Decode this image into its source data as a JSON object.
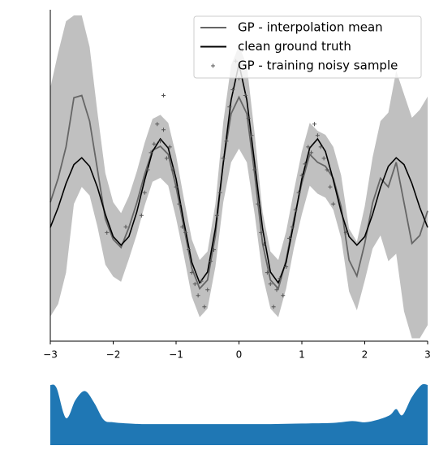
{
  "chart_data": [
    {
      "type": "line",
      "x": [
        -3,
        -2.875,
        -2.75,
        -2.625,
        -2.5,
        -2.375,
        -2.25,
        -2.125,
        -2,
        -1.875,
        -1.75,
        -1.625,
        -1.5,
        -1.375,
        -1.25,
        -1.125,
        -1,
        -0.875,
        -0.75,
        -0.625,
        -0.5,
        -0.375,
        -0.25,
        -0.125,
        0,
        0.125,
        0.25,
        0.375,
        0.5,
        0.625,
        0.75,
        0.875,
        1,
        1.125,
        1.25,
        1.375,
        1.5,
        1.625,
        1.75,
        1.875,
        2,
        2.125,
        2.25,
        2.375,
        2.5,
        2.625,
        2.75,
        2.875,
        3
      ],
      "xlim": [
        -3,
        3
      ],
      "xticks": [
        {
          "value": -3,
          "label": "−3"
        },
        {
          "value": -2,
          "label": "−2"
        },
        {
          "value": -1,
          "label": "−1"
        },
        0,
        1,
        2,
        3
      ],
      "ylim": [
        -2.5,
        3.3
      ],
      "legend": "upper right",
      "band": {
        "color": "#c0c0c0",
        "lower": [
          -2.07,
          -1.85,
          -1.3,
          -0.1,
          0.2,
          0.05,
          -0.5,
          -1.16,
          -1.37,
          -1.46,
          -1.06,
          -0.63,
          -0.13,
          0.29,
          0.36,
          0.22,
          -0.35,
          -1.01,
          -1.72,
          -2.08,
          -1.93,
          -1.2,
          -0.07,
          0.63,
          0.87,
          0.63,
          -0.28,
          -1.34,
          -1.93,
          -2.08,
          -1.58,
          -0.86,
          -0.28,
          0.22,
          0.08,
          0.01,
          -0.2,
          -0.7,
          -1.63,
          -1.96,
          -1.44,
          -0.88,
          -0.65,
          -1.1,
          -0.97,
          -1.98,
          -2.45,
          -2.45,
          -2.22
        ],
        "upper": [
          1.93,
          2.55,
          3.1,
          3.2,
          3.2,
          2.65,
          1.5,
          0.44,
          -0.07,
          -0.26,
          0.04,
          0.47,
          0.97,
          1.39,
          1.46,
          1.32,
          0.75,
          -0.01,
          -0.72,
          -1.08,
          -0.93,
          -0.1,
          1.33,
          2.33,
          2.67,
          2.33,
          1.12,
          -0.24,
          -0.93,
          -1.08,
          -0.58,
          0.14,
          0.82,
          1.32,
          1.18,
          1.11,
          0.9,
          0.4,
          -0.53,
          -0.76,
          -0.14,
          0.72,
          1.35,
          1.5,
          2.23,
          1.82,
          1.41,
          1.55,
          1.78
        ]
      },
      "series": [
        {
          "name": "GP - interpolation mean",
          "color": "#666666",
          "values": [
            -0.07,
            0.35,
            0.9,
            1.76,
            1.8,
            1.35,
            0.5,
            -0.36,
            -0.72,
            -0.86,
            -0.51,
            -0.08,
            0.42,
            0.84,
            0.91,
            0.77,
            0.2,
            -0.51,
            -1.22,
            -1.58,
            -1.43,
            -0.65,
            0.63,
            1.48,
            1.77,
            1.48,
            0.42,
            -0.79,
            -1.43,
            -1.58,
            -1.08,
            -0.36,
            0.27,
            0.77,
            0.63,
            0.56,
            0.35,
            -0.15,
            -1.08,
            -1.36,
            -0.79,
            -0.08,
            0.35,
            0.2,
            0.63,
            -0.08,
            -0.79,
            -0.65,
            -0.22
          ]
        },
        {
          "name": "clean ground truth",
          "color": "#000000",
          "values": [
            -0.51,
            -0.16,
            0.26,
            0.59,
            0.71,
            0.56,
            0.19,
            -0.28,
            -0.67,
            -0.82,
            -0.67,
            -0.24,
            0.32,
            0.82,
            1.04,
            0.88,
            0.34,
            -0.42,
            -1.12,
            -1.48,
            -1.29,
            -0.53,
            0.61,
            1.72,
            2.35,
            1.72,
            0.61,
            -0.53,
            -1.29,
            -1.48,
            -1.12,
            -0.42,
            0.34,
            0.88,
            1.04,
            0.82,
            0.32,
            -0.24,
            -0.67,
            -0.82,
            -0.67,
            -0.28,
            0.19,
            0.56,
            0.71,
            0.59,
            0.26,
            -0.16,
            -0.51
          ]
        },
        {
          "name": "GP - training noisy sample",
          "color": "#555555",
          "marker": "+",
          "x": [
            -1.55,
            -1.5,
            -1.45,
            -1.4,
            -1.35,
            -1.3,
            -1.25,
            -1.2,
            -1.15,
            -1.1,
            -1.05,
            -1,
            -0.95,
            -0.9,
            -0.85,
            -0.8,
            -0.75,
            -0.7,
            -0.65,
            -0.6,
            -0.55,
            -0.5,
            -0.45,
            -0.4,
            -0.35,
            -0.3,
            -0.25,
            -0.2,
            -0.15,
            -0.1,
            -0.05,
            0,
            0.05,
            0.1,
            0.15,
            0.2,
            0.25,
            0.3,
            0.35,
            0.4,
            0.45,
            0.5,
            0.55,
            0.6,
            0.65,
            0.7,
            0.75,
            0.8,
            0.85,
            0.9,
            0.95,
            1,
            1.05,
            1.1,
            1.15,
            1.2,
            1.25,
            1.3,
            1.35,
            1.4,
            1.45,
            1.5,
            -1.8,
            -2.1,
            -1.2,
            1.7
          ],
          "values": [
            -0.3,
            0.1,
            0.5,
            0.8,
            0.95,
            1.3,
            1,
            1.2,
            0.7,
            0.9,
            0.5,
            0.2,
            -0.1,
            -0.5,
            -0.6,
            -0.9,
            -1.3,
            -1.5,
            -1.7,
            -1.45,
            -1.9,
            -1.6,
            -1.1,
            -0.9,
            -0.3,
            0.1,
            0.7,
            1,
            1.6,
            1.9,
            2.4,
            2.1,
            2.6,
            1.8,
            1.4,
            1.1,
            0.5,
            -0.1,
            -0.6,
            -0.8,
            -1.3,
            -1.5,
            -1.9,
            -1.6,
            -1.4,
            -1.7,
            -1.2,
            -0.7,
            -0.5,
            -0.2,
            0.1,
            0.4,
            0.6,
            0.9,
            0.8,
            1.3,
            1.1,
            0.9,
            0.7,
            0.5,
            0.2,
            -0.1,
            -0.5,
            -0.6,
            1.8,
            -0.6
          ]
        }
      ]
    },
    {
      "type": "area",
      "color": "#1f77b4",
      "x": [
        -3,
        -2.9,
        -2.75,
        -2.6,
        -2.45,
        -2.3,
        -2.15,
        -2,
        -1.75,
        -1.5,
        -1,
        -0.5,
        0,
        0.5,
        1,
        1.5,
        1.8,
        2,
        2.2,
        2.4,
        2.5,
        2.6,
        2.75,
        2.9,
        3
      ],
      "values": [
        1,
        0.95,
        0.45,
        0.75,
        0.9,
        0.7,
        0.42,
        0.38,
        0.36,
        0.35,
        0.35,
        0.35,
        0.35,
        0.35,
        0.36,
        0.37,
        0.4,
        0.38,
        0.42,
        0.5,
        0.6,
        0.5,
        0.8,
        1,
        1
      ],
      "xlim": [
        -3,
        3
      ],
      "ylim": [
        0,
        1
      ]
    }
  ]
}
